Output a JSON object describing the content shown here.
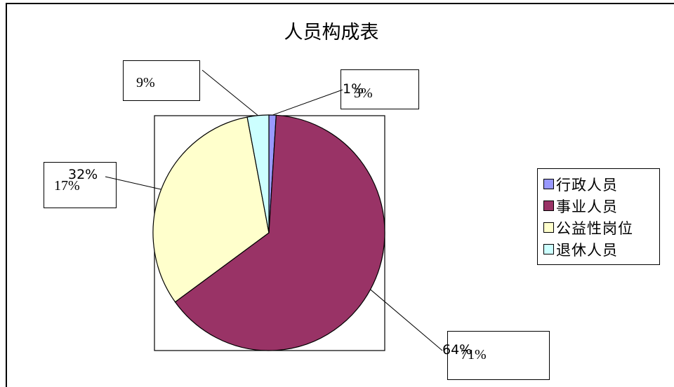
{
  "chart_data": {
    "type": "pie",
    "title": "人员构成表",
    "categories": [
      "行政人员",
      "事业人员",
      "公益性岗位",
      "退休人员"
    ],
    "values": [
      1,
      64,
      32,
      3
    ],
    "data_labels": [
      "1%",
      "64%",
      "32%",
      "3%"
    ],
    "colors": [
      "#9999ff",
      "#993366",
      "#ffffcc",
      "#ccffff"
    ],
    "legend_position": "right"
  },
  "overlay_labels": {
    "top_left": "9%",
    "top_right": "3%",
    "left": "17%",
    "bottom_right": "71%"
  }
}
